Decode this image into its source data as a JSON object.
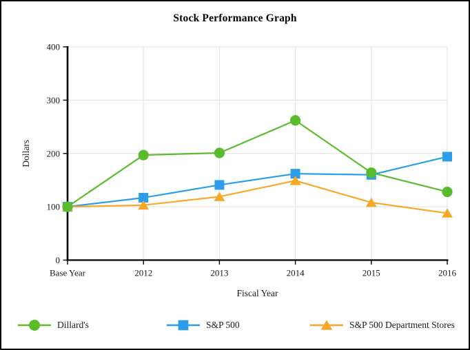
{
  "chart_data": {
    "type": "line",
    "title": "Stock Performance Graph",
    "xlabel": "Fiscal Year",
    "ylabel": "Dollars",
    "categories": [
      "Base Year",
      "2012",
      "2013",
      "2014",
      "2015",
      "2016"
    ],
    "ylim": [
      0,
      400
    ],
    "yticks": [
      0,
      100,
      200,
      300,
      400
    ],
    "grid": true,
    "legend_position": "bottom",
    "series": [
      {
        "name": "Dillard's",
        "marker": "circle",
        "color": "#5ABB2D",
        "values": [
          100,
          197,
          201,
          262,
          164,
          128
        ]
      },
      {
        "name": "S&P 500",
        "marker": "square",
        "color": "#2C9DE8",
        "values": [
          100,
          117,
          141,
          162,
          160,
          194
        ]
      },
      {
        "name": "S&P 500 Department Stores",
        "marker": "triangle",
        "color": "#F7A828",
        "values": [
          100,
          103,
          119,
          149,
          108,
          88
        ]
      }
    ],
    "style": {
      "grid_color": "#E5E5E5",
      "axis_color": "#000000",
      "text_color": "#1a1a1a"
    }
  }
}
